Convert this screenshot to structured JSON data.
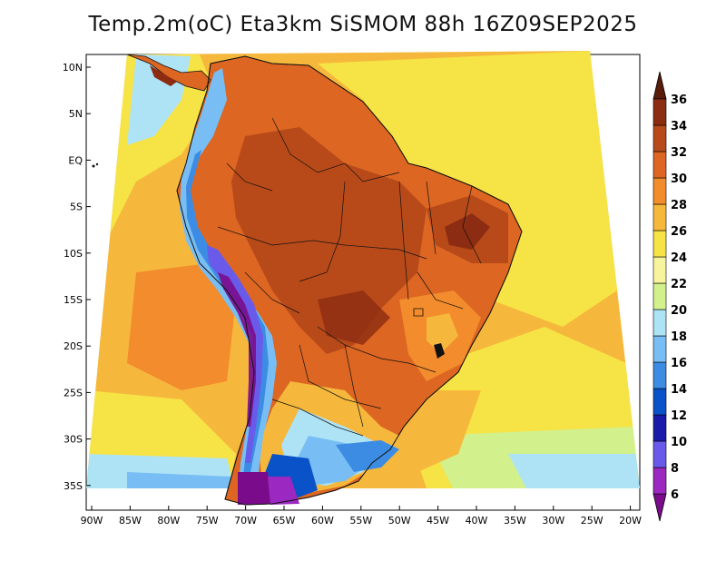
{
  "title": "Temp.2m(oC) Eta3km SiSMOM 88h 16Z09SEP2025",
  "lat_labels": [
    "10N",
    "5N",
    "EQ",
    "5S",
    "10S",
    "15S",
    "20S",
    "25S",
    "30S",
    "35S"
  ],
  "lon_labels": [
    "90W",
    "85W",
    "80W",
    "75W",
    "70W",
    "65W",
    "60W",
    "55W",
    "50W",
    "45W",
    "40W",
    "35W",
    "30W",
    "25W",
    "20W"
  ],
  "colorbar": {
    "levels": [
      "6",
      "8",
      "10",
      "12",
      "14",
      "16",
      "18",
      "20",
      "22",
      "24",
      "26",
      "28",
      "30",
      "32",
      "34",
      "36"
    ],
    "colors": [
      "#7a0c8c",
      "#9b28c0",
      "#6a5aea",
      "#1a1aa8",
      "#0a52c8",
      "#3c8ce4",
      "#78bef4",
      "#aee3f6",
      "#d2f08c",
      "#f7f49e",
      "#f6e346",
      "#f6b83c",
      "#f28c2c",
      "#dc6622",
      "#b84a1a",
      "#8c2c12",
      "#5a1c0a"
    ]
  },
  "palette": {
    "ocean_warm": "#f6b83c",
    "ocean_hot": "#f28c2c",
    "ocean_mild": "#f6e346",
    "land_hot": "#dc6622",
    "land_vhot": "#b84a1a",
    "cold": "#78bef4"
  }
}
